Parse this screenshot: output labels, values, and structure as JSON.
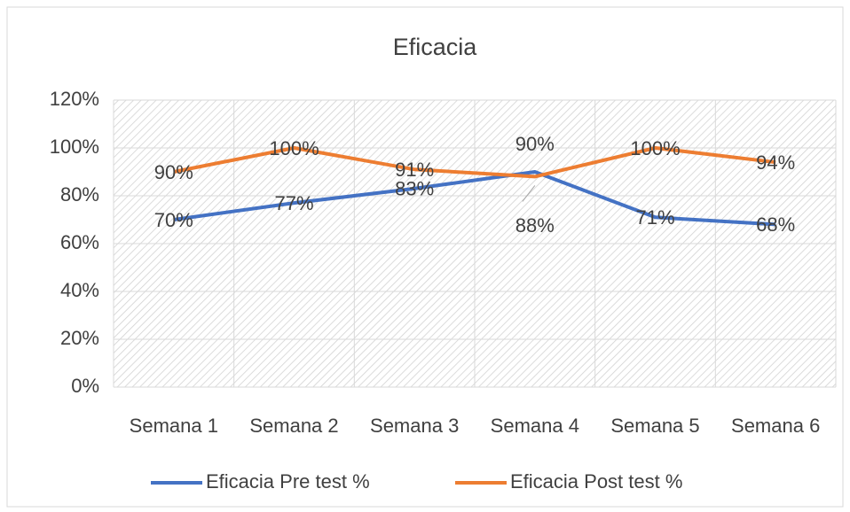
{
  "chart_data": {
    "type": "line",
    "title": "Eficacia",
    "categories": [
      "Semana 1",
      "Semana 2",
      "Semana 3",
      "Semana 4",
      "Semana 5",
      "Semana 6"
    ],
    "series": [
      {
        "name": "Eficacia Pre test %",
        "color": "#4472c4",
        "values": [
          70,
          77,
          83,
          90,
          71,
          68
        ],
        "value_labels": [
          "70%",
          "77%",
          "83%",
          "90%",
          "71%",
          "68%"
        ]
      },
      {
        "name": "Eficacia Post test %",
        "color": "#ed7d31",
        "values": [
          90,
          100,
          91,
          88,
          100,
          94
        ],
        "value_labels": [
          "90%",
          "100%",
          "91%",
          "88%",
          "100%",
          "94%"
        ]
      }
    ],
    "ylim": [
      0,
      120
    ],
    "yticks": [
      {
        "value": 0,
        "label": "0%"
      },
      {
        "value": 20,
        "label": "20%"
      },
      {
        "value": 40,
        "label": "40%"
      },
      {
        "value": 60,
        "label": "60%"
      },
      {
        "value": 80,
        "label": "80%"
      },
      {
        "value": 100,
        "label": "100%"
      },
      {
        "value": 120,
        "label": "120%"
      }
    ],
    "grid": true,
    "legend": "bottom"
  }
}
